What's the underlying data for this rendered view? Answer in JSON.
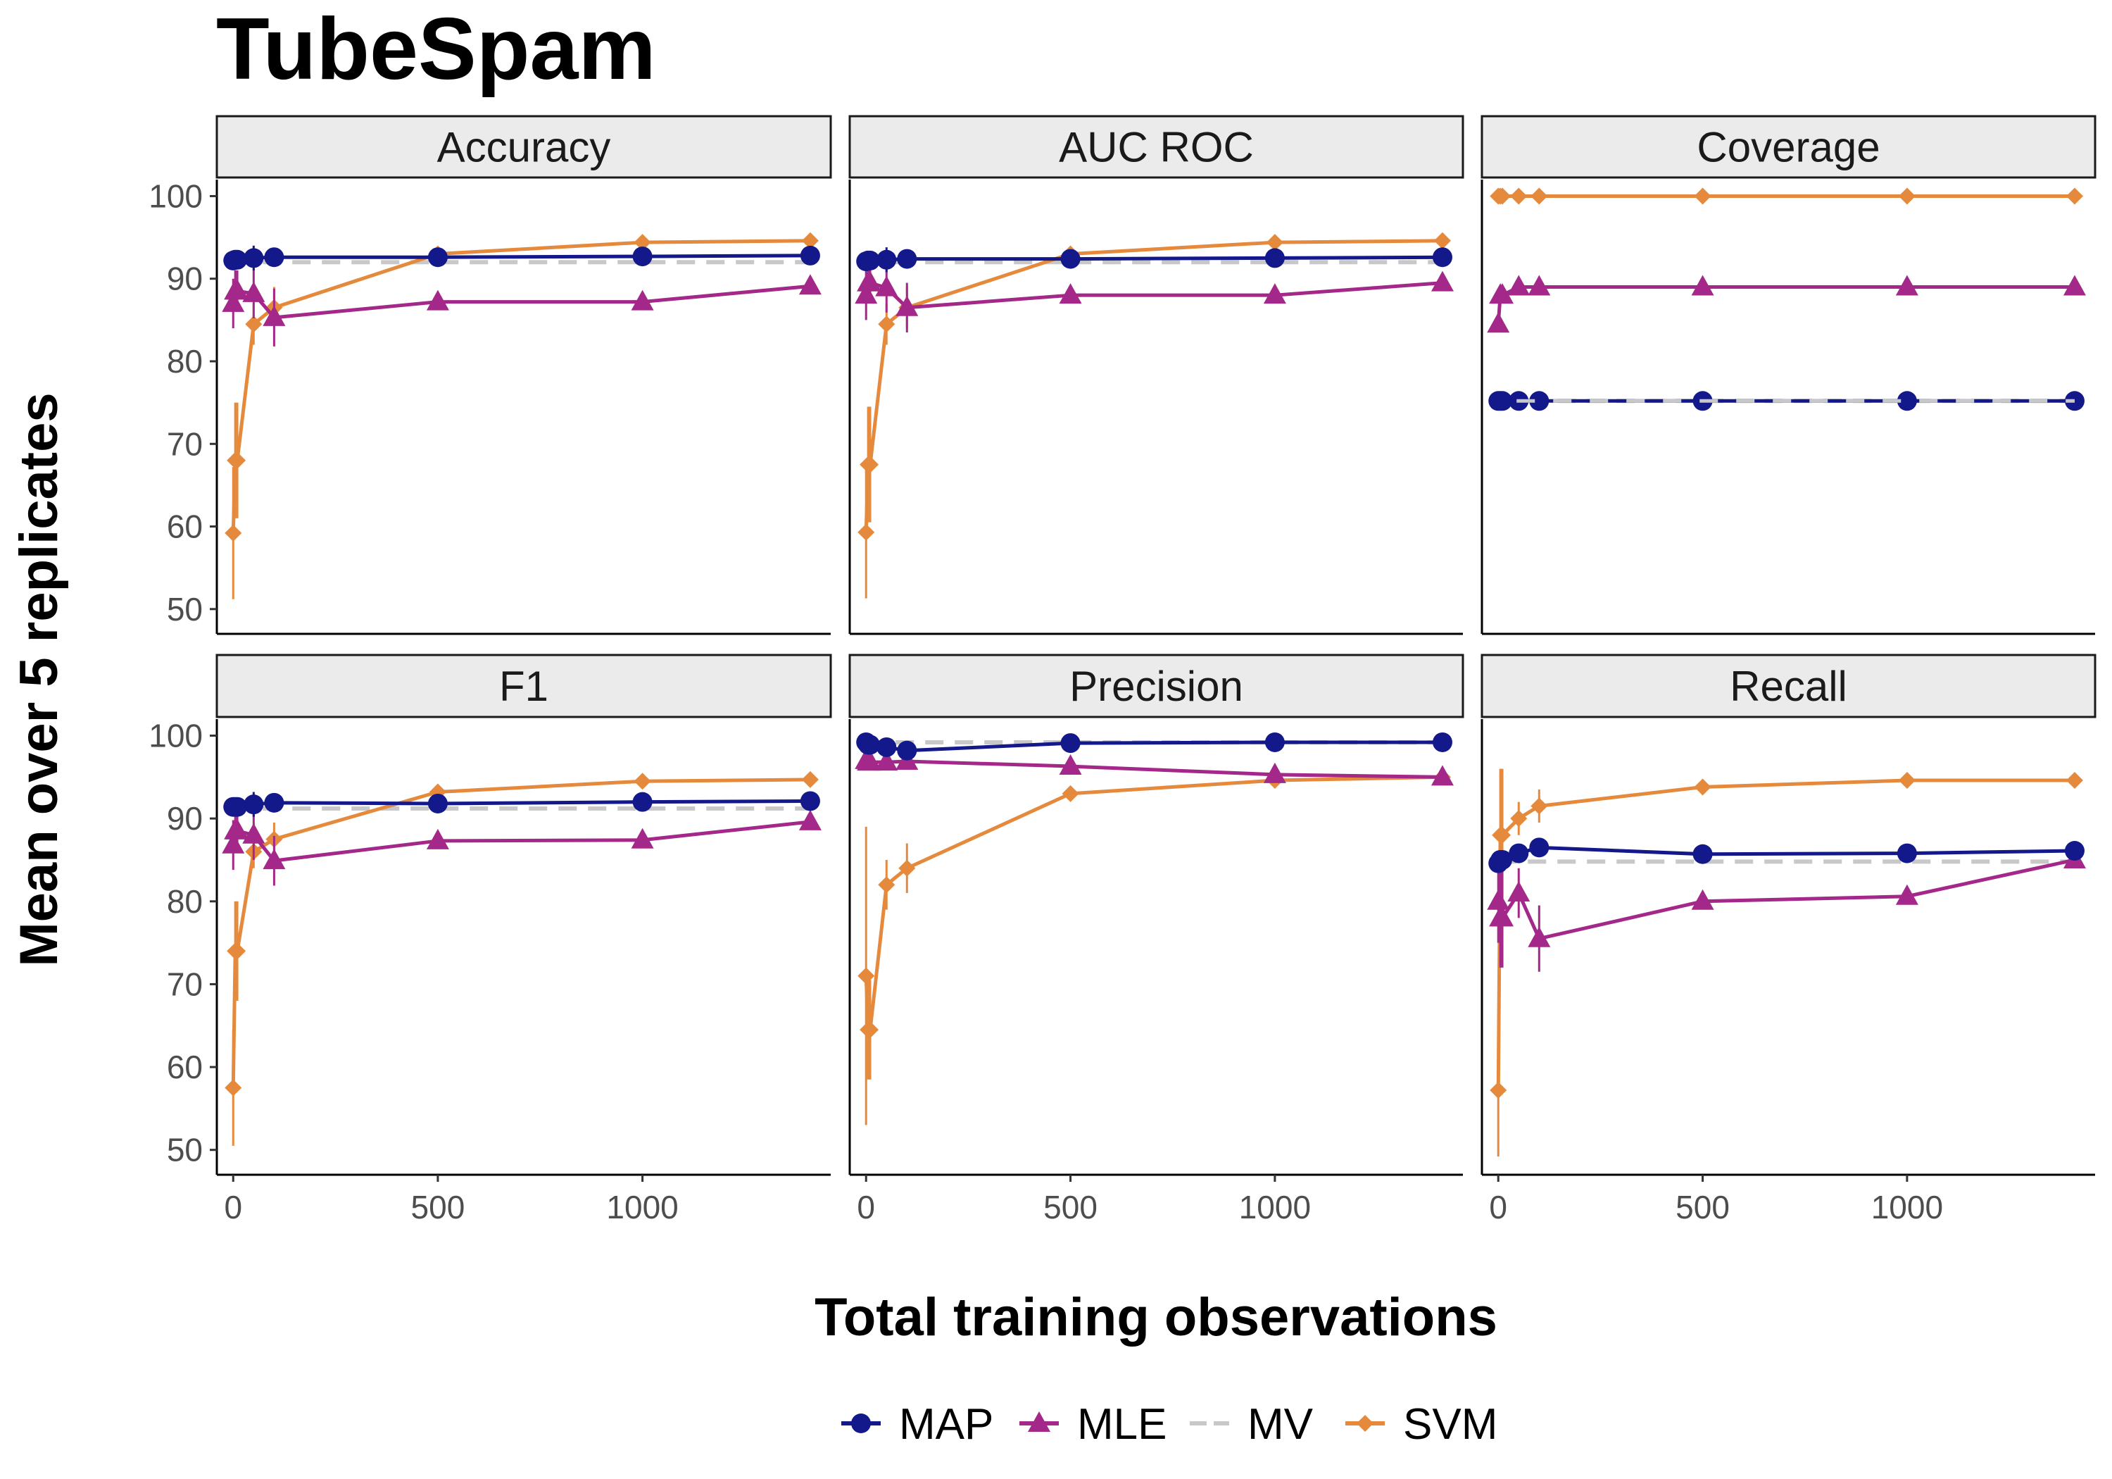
{
  "title": "TubeSpam",
  "colors": {
    "MAP": "#13188a",
    "MLE": "#a3288a",
    "MV": "#c8c8c8",
    "SVM": "#e58a3c",
    "strip_fill": "#ebebeb"
  },
  "chart_data": {
    "type": "line",
    "title": "TubeSpam",
    "xlabel": "Total training observations",
    "ylabel": "Mean over 5 replicates",
    "x": [
      0,
      5,
      10,
      50,
      100,
      500,
      1000,
      1410
    ],
    "xlim": [
      -40,
      1460
    ],
    "ylim": [
      47,
      102
    ],
    "xticks": [
      0,
      500,
      1000
    ],
    "yticks": [
      50,
      60,
      70,
      80,
      90,
      100
    ],
    "legend": {
      "position": "bottom",
      "entries": [
        "MAP",
        "MLE",
        "MV",
        "SVM"
      ]
    },
    "panels": [
      {
        "name": "Accuracy",
        "series": [
          {
            "name": "MAP",
            "values": [
              92.2,
              92.3,
              92.3,
              92.5,
              92.6,
              92.6,
              92.7,
              92.8
            ],
            "err": [
              0.5,
              0.5,
              0.5,
              1.5,
              0.8,
              0.3,
              0.3,
              0.3
            ]
          },
          {
            "name": "MLE",
            "values": [
              87.0,
              88.5,
              88.5,
              88.2,
              85.3,
              87.2,
              87.2,
              89.1
            ],
            "err": [
              3.0,
              2.5,
              2.5,
              3.0,
              3.5,
              0.5,
              0.5,
              0.5
            ]
          },
          {
            "name": "MV",
            "values": [
              92.0,
              92.0,
              92.0,
              92.0,
              92.0,
              92.0,
              92.0,
              92.0
            ]
          },
          {
            "name": "SVM",
            "values": [
              59.2,
              68.0,
              68.0,
              84.5,
              86.5,
              93.0,
              94.4,
              94.6
            ],
            "err": [
              8.0,
              7.0,
              7.0,
              2.5,
              2.5,
              0.5,
              0.3,
              0.3
            ]
          }
        ]
      },
      {
        "name": "AUC ROC",
        "series": [
          {
            "name": "MAP",
            "values": [
              92.1,
              92.2,
              92.2,
              92.3,
              92.4,
              92.4,
              92.5,
              92.6
            ],
            "err": [
              0.5,
              0.5,
              0.5,
              1.5,
              0.8,
              0.3,
              0.3,
              0.3
            ]
          },
          {
            "name": "MLE",
            "values": [
              88.0,
              89.5,
              89.5,
              88.9,
              86.5,
              88.0,
              88.0,
              89.5
            ],
            "err": [
              3.0,
              2.5,
              2.5,
              3.0,
              3.0,
              0.5,
              0.5,
              0.5
            ]
          },
          {
            "name": "MV",
            "values": [
              92.0,
              92.0,
              92.0,
              92.0,
              92.0,
              92.0,
              92.0,
              92.0
            ]
          },
          {
            "name": "SVM",
            "values": [
              59.3,
              67.5,
              67.5,
              84.5,
              86.5,
              93.0,
              94.4,
              94.6
            ],
            "err": [
              8.0,
              7.0,
              7.0,
              2.5,
              2.5,
              0.5,
              0.3,
              0.3
            ]
          }
        ]
      },
      {
        "name": "Coverage",
        "series": [
          {
            "name": "MAP",
            "values": [
              75.2,
              75.2,
              75.2,
              75.2,
              75.2,
              75.2,
              75.2,
              75.2
            ]
          },
          {
            "name": "MLE",
            "values": [
              84.5,
              88.0,
              88.0,
              89.0,
              89.0,
              89.0,
              89.0,
              89.0
            ]
          },
          {
            "name": "MV",
            "values": [
              75.2,
              75.2,
              75.2,
              75.2,
              75.2,
              75.2,
              75.2,
              75.2
            ]
          },
          {
            "name": "SVM",
            "values": [
              100,
              100,
              100,
              100,
              100,
              100,
              100,
              100
            ]
          }
        ]
      },
      {
        "name": "F1",
        "series": [
          {
            "name": "MAP",
            "values": [
              91.4,
              91.4,
              91.4,
              91.7,
              91.9,
              91.8,
              92.0,
              92.1
            ],
            "err": [
              0.5,
              0.5,
              0.5,
              1.5,
              0.8,
              0.3,
              0.3,
              0.3
            ]
          },
          {
            "name": "MLE",
            "values": [
              86.8,
              88.5,
              88.5,
              88.0,
              84.9,
              87.3,
              87.4,
              89.6
            ],
            "err": [
              3.0,
              2.5,
              2.5,
              3.0,
              3.0,
              0.5,
              0.5,
              0.5
            ]
          },
          {
            "name": "MV",
            "values": [
              91.2,
              91.2,
              91.2,
              91.2,
              91.2,
              91.2,
              91.2,
              91.2
            ]
          },
          {
            "name": "SVM",
            "values": [
              57.5,
              74.0,
              74.0,
              86.0,
              87.5,
              93.2,
              94.5,
              94.7
            ],
            "err": [
              7.0,
              6.0,
              6.0,
              2.0,
              2.0,
              0.5,
              0.3,
              0.3
            ]
          }
        ]
      },
      {
        "name": "Precision",
        "series": [
          {
            "name": "MAP",
            "values": [
              99.2,
              98.9,
              98.9,
              98.6,
              98.2,
              99.1,
              99.2,
              99.2
            ],
            "err": [
              0.5,
              0.5,
              0.5,
              0.5,
              0.5,
              0.3,
              0.3,
              0.3
            ]
          },
          {
            "name": "MLE",
            "values": [
              97.0,
              96.8,
              96.8,
              96.8,
              96.9,
              96.3,
              95.3,
              95.0
            ],
            "err": [
              1.0,
              1.0,
              1.0,
              1.0,
              1.0,
              0.5,
              0.5,
              0.5
            ]
          },
          {
            "name": "MV",
            "values": [
              99.2,
              99.2,
              99.2,
              99.2,
              99.2,
              99.2,
              99.2,
              99.2
            ]
          },
          {
            "name": "SVM",
            "values": [
              71.0,
              64.5,
              64.5,
              82.0,
              84.0,
              93.0,
              94.6,
              95.0
            ],
            "err": [
              18.0,
              6.0,
              6.0,
              3.0,
              3.0,
              0.5,
              0.3,
              0.3
            ]
          }
        ]
      },
      {
        "name": "Recall",
        "series": [
          {
            "name": "MAP",
            "values": [
              84.6,
              85.0,
              85.0,
              85.8,
              86.5,
              85.7,
              85.8,
              86.1
            ],
            "err": [
              1.0,
              1.0,
              1.0,
              1.0,
              1.0,
              0.5,
              0.5,
              0.5
            ]
          },
          {
            "name": "MLE",
            "values": [
              80.0,
              78.0,
              78.0,
              81.0,
              75.5,
              80.0,
              80.6,
              85.0
            ],
            "err": [
              5.0,
              6.0,
              6.0,
              3.0,
              4.0,
              0.8,
              0.8,
              0.5
            ]
          },
          {
            "name": "MV",
            "values": [
              84.8,
              84.8,
              84.8,
              84.8,
              84.8,
              84.8,
              84.8,
              84.8
            ]
          },
          {
            "name": "SVM",
            "values": [
              57.2,
              88.0,
              88.0,
              90.0,
              91.5,
              93.8,
              94.6,
              94.6
            ],
            "err": [
              8.0,
              8.0,
              8.0,
              2.0,
              2.0,
              0.5,
              0.3,
              0.3
            ]
          }
        ]
      }
    ]
  }
}
